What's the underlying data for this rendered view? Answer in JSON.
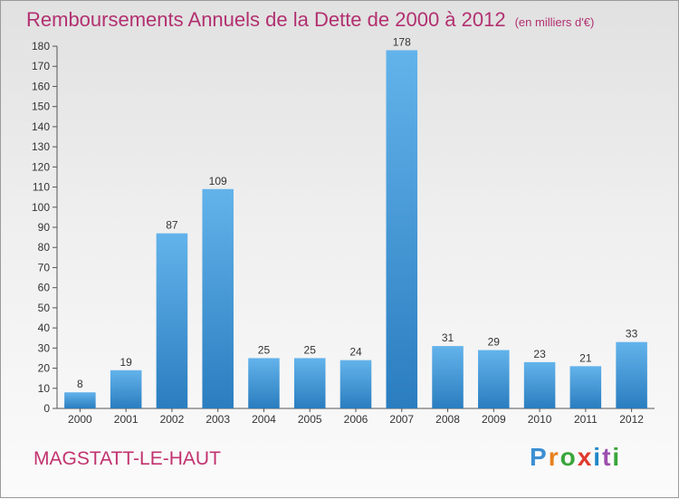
{
  "title": "Remboursements Annuels de la Dette de 2000 à 2012",
  "unit_note": "(en milliers d'€)",
  "commune": "MAGSTATT-LE-HAUT",
  "logo": {
    "letters": [
      "P",
      "r",
      "o",
      "x",
      "i",
      "t",
      "i"
    ],
    "colors": [
      "#3b8fd3",
      "#e8801c",
      "#3aa63a",
      "#e03a2e",
      "#1f87c9",
      "#9c4fae",
      "#3aa63a"
    ]
  },
  "colors": {
    "bar_light": "#63b3eb",
    "bar_dark": "#2a7dbf",
    "title": "#b23070"
  },
  "chart_data": {
    "type": "bar",
    "title": "Remboursements Annuels de la Dette de 2000 à 2012",
    "xlabel": "",
    "ylabel": "",
    "categories": [
      "2000",
      "2001",
      "2002",
      "2003",
      "2004",
      "2005",
      "2006",
      "2007",
      "2008",
      "2009",
      "2010",
      "2011",
      "2012"
    ],
    "values": [
      8,
      19,
      87,
      109,
      25,
      25,
      24,
      178,
      31,
      29,
      23,
      21,
      33
    ],
    "ylim": [
      0,
      180
    ],
    "yticks": [
      0,
      10,
      20,
      30,
      40,
      50,
      60,
      70,
      80,
      90,
      100,
      110,
      120,
      130,
      140,
      150,
      160,
      170,
      180
    ],
    "grid": false,
    "legend": "none"
  }
}
